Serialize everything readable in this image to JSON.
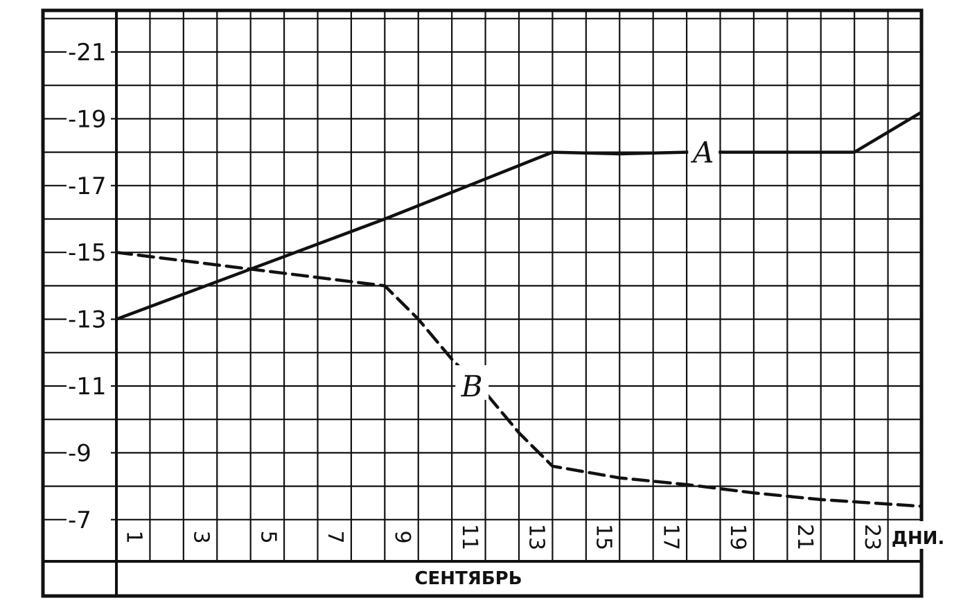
{
  "chart_data": {
    "type": "line",
    "x_unit_label": "ДНИ.",
    "month_label": "СЕНТЯБРЬ",
    "x_tick_labels": [
      "1",
      "3",
      "5",
      "7",
      "9",
      "11",
      "13",
      "15",
      "17",
      "19",
      "21",
      "23"
    ],
    "x_ticks": [
      1,
      3,
      5,
      7,
      9,
      11,
      13,
      15,
      17,
      19,
      21,
      23
    ],
    "y_tick_labels": [
      "-7",
      "-9",
      "-11",
      "-13",
      "-15",
      "-17",
      "-19",
      "-21"
    ],
    "y_ticks": [
      7,
      9,
      11,
      13,
      15,
      17,
      19,
      21
    ],
    "xlim": [
      1,
      25
    ],
    "ylim": [
      6.5,
      22
    ],
    "grid": true,
    "series": [
      {
        "name": "A",
        "style": "solid",
        "points": [
          [
            1,
            13
          ],
          [
            5,
            14.5
          ],
          [
            9,
            16
          ],
          [
            12,
            17.2
          ],
          [
            14,
            18
          ],
          [
            16,
            17.95
          ],
          [
            18,
            18
          ],
          [
            23,
            18
          ],
          [
            25,
            19.2
          ]
        ]
      },
      {
        "name": "B",
        "style": "dashed",
        "points": [
          [
            1,
            15
          ],
          [
            5,
            14.5
          ],
          [
            9,
            14
          ],
          [
            10,
            13
          ],
          [
            11,
            11.8
          ],
          [
            12,
            10.8
          ],
          [
            13,
            9.6
          ],
          [
            14,
            8.6
          ],
          [
            16,
            8.25
          ],
          [
            18,
            8.05
          ],
          [
            20,
            7.8
          ],
          [
            22,
            7.6
          ],
          [
            25,
            7.4
          ]
        ]
      }
    ]
  },
  "colors": {
    "ink": "#111111",
    "paper": "#ffffff"
  }
}
